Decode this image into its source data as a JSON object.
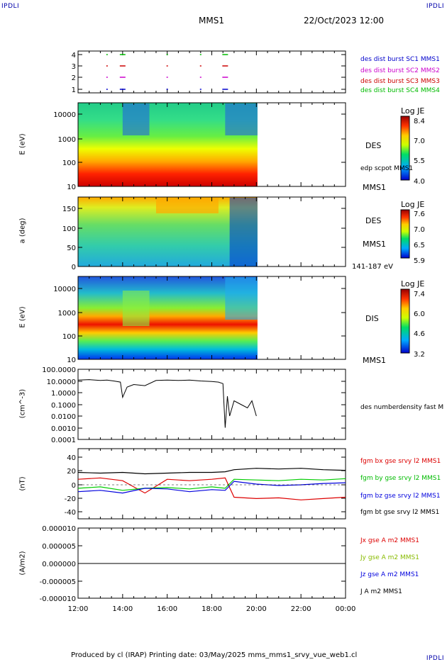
{
  "header": {
    "corner_left": "IPDLI",
    "corner_right": "IPDLI",
    "corner_bottom_right": "IPDLI",
    "probe": "MMS1",
    "datetime": "22/Oct/2023 12:00"
  },
  "footer": {
    "text": "Produced by cl (IRAP)   Printing date: 03/May/2025   mms_mms1_srvy_vue_web1.cl"
  },
  "time_axis": {
    "ticks": [
      "12:00",
      "14:00",
      "16:00",
      "18:00",
      "20:00",
      "22:00",
      "00:00"
    ]
  },
  "colors": {
    "c1": "#0000cc",
    "c2": "#cc00cc",
    "c3": "#cc0000",
    "c4": "#00bb00",
    "bx": "#dd0000",
    "by": "#00cc00",
    "bz": "#0000dd",
    "bt": "#000000"
  },
  "panels": {
    "burst": {
      "yticks": [
        "4",
        "3",
        "2",
        "1"
      ],
      "labels": [
        "des dist burst SC1 MMS1",
        "des dist burst SC2 MMS2",
        "des dist burst SC3 MMS3",
        "des dist burst SC4 MMS4"
      ]
    },
    "des_energy": {
      "ylabel": "E (eV)",
      "yticks": [
        "10000",
        "1000",
        "100",
        "10"
      ],
      "right_label": "DES",
      "right_sub": "edp scpot MMS1",
      "probe_label": "MMS1",
      "cbar_title": "Log JE",
      "cbar_ticks": [
        "8.4",
        "7.0",
        "5.5",
        "4.0"
      ]
    },
    "des_pitch": {
      "ylabel": "a (deg)",
      "yticks": [
        "150",
        "100",
        "50",
        "0"
      ],
      "right_label": "DES",
      "probe_label": "MMS1",
      "energy_range": "141-187 eV",
      "cbar_title": "Log JE",
      "cbar_ticks": [
        "7.6",
        "7.0",
        "6.5",
        "5.9"
      ]
    },
    "dis_energy": {
      "ylabel": "E (eV)",
      "yticks": [
        "10000",
        "1000",
        "100",
        "10"
      ],
      "right_label": "DIS",
      "probe_label": "MMS1",
      "cbar_title": "Log JE",
      "cbar_ticks": [
        "7.4",
        "6.0",
        "4.6",
        "3.2"
      ]
    },
    "density": {
      "ylabel": "(cm^-3)",
      "yticks": [
        "100.0000",
        "10.0000",
        "1.0000",
        "0.1000",
        "0.0100",
        "0.0010",
        "0.0001"
      ],
      "label": "des numberdensity fast M"
    },
    "bfield": {
      "ylabel": "(nT)",
      "yticks": [
        "40",
        "20",
        "0",
        "-20",
        "-40"
      ],
      "labels": [
        "fgm bx gse srvy l2 MMS1",
        "fgm by gse srvy l2 MMS1",
        "fgm bz gse srvy l2 MMS1",
        "fgm bt gse srvy l2 MMS1"
      ]
    },
    "current": {
      "ylabel": "(A/m2)",
      "yticks": [
        "0.000010",
        "0.000005",
        "0.000000",
        "-0.000005",
        "-0.000010"
      ],
      "labels": [
        "Jx gse A m2 MMS1",
        "Jy gse A m2 MMS1",
        "Jz gse A m2 MMS1",
        "J A m2 MMS1"
      ]
    }
  },
  "chart_data": [
    {
      "type": "line",
      "title": "density",
      "ylabel": "(cm^-3)",
      "yscale": "log",
      "ylim": [
        0.0001,
        100
      ],
      "x_hours": [
        12,
        12.5,
        13,
        13.3,
        13.6,
        13.9,
        14.0,
        14.2,
        14.5,
        15.0,
        15.5,
        16.0,
        16.5,
        17.0,
        17.5,
        18.0,
        18.3,
        18.5,
        18.6,
        18.7,
        18.8,
        19.0,
        19.3,
        19.6,
        19.8,
        20.0
      ],
      "series": [
        {
          "values": [
            12,
            13,
            11,
            12,
            10,
            8,
            0.4,
            3,
            5,
            4,
            11,
            12,
            11,
            12,
            10,
            9,
            8,
            6,
            0.001,
            0.5,
            0.01,
            0.2,
            0.1,
            0.05,
            0.2,
            0.01
          ]
        }
      ]
    },
    {
      "type": "line",
      "title": "bfield",
      "ylabel": "(nT)",
      "ylim": [
        -50,
        50
      ],
      "x_hours": [
        12,
        13,
        14,
        15,
        16,
        17,
        18,
        18.6,
        19,
        20,
        21,
        22,
        23,
        24
      ],
      "series": [
        {
          "name": "fgm bx gse srvy l2 MMS1",
          "values": [
            8,
            10,
            6,
            -12,
            8,
            6,
            8,
            10,
            -18,
            -20,
            -19,
            -22,
            -20,
            -18
          ]
        },
        {
          "name": "fgm by gse srvy l2 MMS1",
          "values": [
            -5,
            -3,
            -8,
            -5,
            -4,
            -6,
            -3,
            -5,
            8,
            7,
            6,
            8,
            7,
            9
          ]
        },
        {
          "name": "fgm bz gse srvy l2 MMS1",
          "values": [
            -10,
            -8,
            -12,
            -5,
            -6,
            -10,
            -7,
            -8,
            5,
            1,
            -1,
            0,
            2,
            3
          ]
        },
        {
          "name": "fgm bt gse srvy l2 MMS1",
          "values": [
            18,
            17,
            18,
            16,
            17,
            18,
            18,
            19,
            22,
            24,
            23,
            24,
            22,
            21
          ]
        }
      ]
    },
    {
      "type": "line",
      "title": "current",
      "ylabel": "(A/m2)",
      "ylim": [
        -1e-05,
        1e-05
      ],
      "x_hours": [
        12,
        24
      ],
      "series": [
        {
          "name": "Jx gse A m2 MMS1",
          "values": [
            0,
            0
          ]
        },
        {
          "name": "Jy gse A m2 MMS1",
          "values": [
            0,
            0
          ]
        },
        {
          "name": "Jz gse A m2 MMS1",
          "values": [
            0,
            0
          ]
        },
        {
          "name": "J A m2 MMS1",
          "values": [
            0,
            0
          ]
        }
      ]
    }
  ]
}
